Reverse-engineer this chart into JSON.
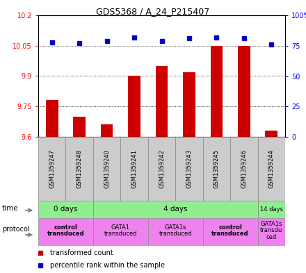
{
  "title": "GDS5368 / A_24_P215407",
  "samples": [
    "GSM1359247",
    "GSM1359248",
    "GSM1359240",
    "GSM1359241",
    "GSM1359242",
    "GSM1359243",
    "GSM1359245",
    "GSM1359246",
    "GSM1359244"
  ],
  "transformed_count": [
    9.78,
    9.7,
    9.66,
    9.9,
    9.95,
    9.92,
    10.05,
    10.05,
    9.63
  ],
  "percentile_rank": [
    78,
    77,
    79,
    82,
    79,
    81,
    82,
    81,
    76
  ],
  "ylim_left": [
    9.6,
    10.2
  ],
  "yticks_left": [
    9.6,
    9.75,
    9.9,
    10.05,
    10.2
  ],
  "ylim_right": [
    0,
    100
  ],
  "yticks_right": [
    0,
    25,
    50,
    75,
    100
  ],
  "bar_color": "#cc0000",
  "dot_color": "#0000cc",
  "bar_bottom": 9.6,
  "time_spans": [
    [
      0,
      2,
      "0 days"
    ],
    [
      2,
      8,
      "4 days"
    ],
    [
      8,
      9,
      "14 days"
    ]
  ],
  "proto_spans": [
    [
      0,
      2,
      "control\ntransduced",
      true
    ],
    [
      2,
      4,
      "GATA1\ntransduced",
      false
    ],
    [
      4,
      6,
      "GATA1s\ntransduced",
      false
    ],
    [
      6,
      8,
      "control\ntransduced",
      true
    ],
    [
      8,
      9,
      "GATA1s\ntransdu\nced",
      false
    ]
  ],
  "sample_bg": "#cccccc",
  "time_bg": "#90ee90",
  "proto_bg": "#ee82ee",
  "legend_items": [
    {
      "label": "transformed count",
      "color": "#cc0000"
    },
    {
      "label": "percentile rank within the sample",
      "color": "#0000cc"
    }
  ]
}
